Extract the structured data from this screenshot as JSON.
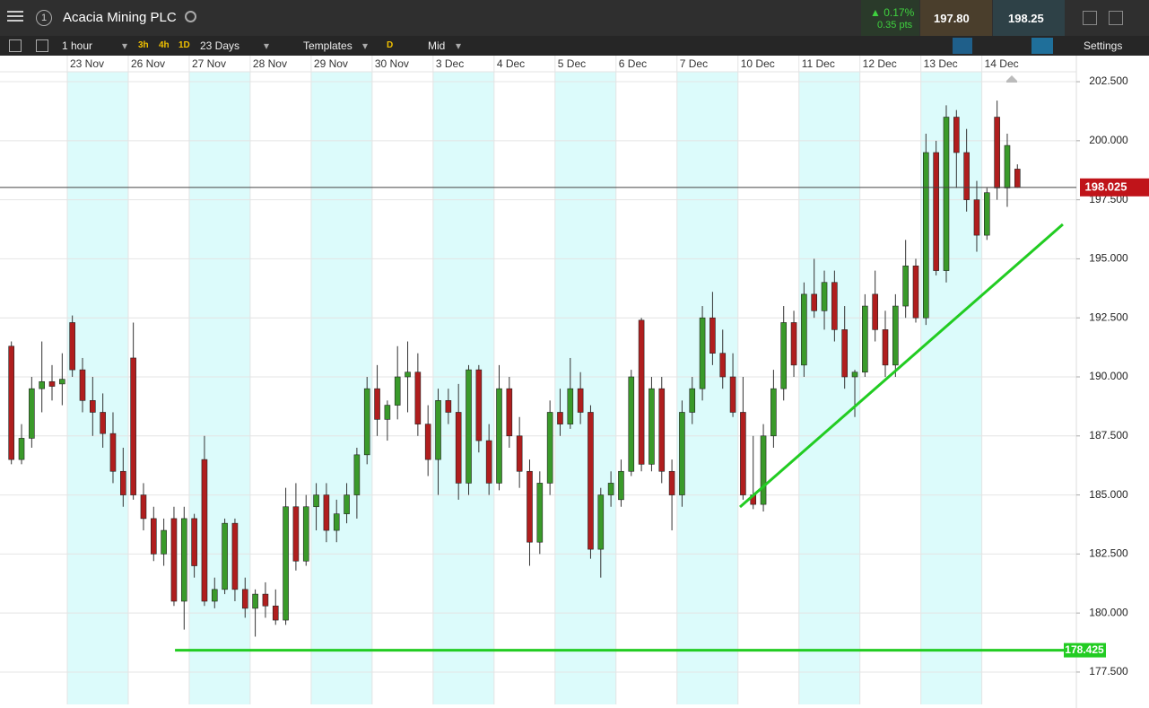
{
  "header": {
    "title": "Acacia Mining PLC",
    "change_pct": "▲ 0.17%",
    "change_pts": "0.35 pts",
    "sell": "197.80",
    "buy": "198.25"
  },
  "toolbar": {
    "interval": "1 hour",
    "quick": [
      "3h",
      "4h",
      "1D"
    ],
    "range": "23 Days",
    "templates": "Templates",
    "mode": "D",
    "price_type": "Mid",
    "settings": "Settings"
  },
  "chart_data": {
    "type": "candlestick",
    "up_color": "#3a9a2a",
    "down_color": "#b01e1e",
    "grid": true,
    "xlim": [
      -0.62,
      105.3
    ],
    "ylim": [
      176.13,
      202.92
    ],
    "xticks": [
      {
        "value": 6,
        "label": "23 Nov"
      },
      {
        "value": 12,
        "label": "26 Nov"
      },
      {
        "value": 18,
        "label": "27 Nov"
      },
      {
        "value": 24,
        "label": "28 Nov"
      },
      {
        "value": 30,
        "label": "29 Nov"
      },
      {
        "value": 36,
        "label": "30 Nov"
      },
      {
        "value": 42,
        "label": "3 Dec"
      },
      {
        "value": 48,
        "label": "4 Dec"
      },
      {
        "value": 54,
        "label": "5 Dec"
      },
      {
        "value": 60,
        "label": "6 Dec"
      },
      {
        "value": 66,
        "label": "7 Dec"
      },
      {
        "value": 72,
        "label": "10 Dec"
      },
      {
        "value": 78,
        "label": "11 Dec"
      },
      {
        "value": 84,
        "label": "12 Dec"
      },
      {
        "value": 90,
        "label": "13 Dec"
      },
      {
        "value": 96,
        "label": "14 Dec"
      }
    ],
    "yticks": [
      {
        "value": 177.5,
        "label": "177.500"
      },
      {
        "value": 180,
        "label": "180.000"
      },
      {
        "value": 182.5,
        "label": "182.500"
      },
      {
        "value": 185,
        "label": "185.000"
      },
      {
        "value": 187.5,
        "label": "187.500"
      },
      {
        "value": 190,
        "label": "190.000"
      },
      {
        "value": 192.5,
        "label": "192.500"
      },
      {
        "value": 195,
        "label": "195.000"
      },
      {
        "value": 197.5,
        "label": "197.500"
      },
      {
        "value": 200,
        "label": "200.000"
      },
      {
        "value": 202.5,
        "label": "202.500"
      }
    ],
    "current_price": {
      "value": 198.025,
      "label": "198.025",
      "color": "#c0141a"
    },
    "support": {
      "value": 178.425,
      "label": "178.425",
      "x": [
        16.6,
        105.3
      ],
      "color": "#22cc22"
    },
    "trendline": {
      "x": [
        72.2,
        103.97
      ],
      "y": [
        184.49,
        196.46
      ],
      "color": "#22cc22"
    },
    "candles": [
      {
        "open": 191.3,
        "high": 191.5,
        "low": 186.3,
        "close": 186.5
      },
      {
        "open": 186.5,
        "high": 188,
        "low": 186.3,
        "close": 187.4
      },
      {
        "open": 187.4,
        "high": 190,
        "low": 187,
        "close": 189.5
      },
      {
        "open": 189.5,
        "high": 191.5,
        "low": 188.5,
        "close": 189.8
      },
      {
        "open": 189.8,
        "high": 190.5,
        "low": 189,
        "close": 189.6
      },
      {
        "open": 189.7,
        "high": 191,
        "low": 188.8,
        "close": 189.9
      },
      {
        "open": 192.3,
        "high": 192.6,
        "low": 190,
        "close": 190.3
      },
      {
        "open": 190.3,
        "high": 190.8,
        "low": 188.5,
        "close": 189
      },
      {
        "open": 189,
        "high": 190,
        "low": 187.5,
        "close": 188.5
      },
      {
        "open": 188.5,
        "high": 189.3,
        "low": 187,
        "close": 187.6
      },
      {
        "open": 187.6,
        "high": 188.5,
        "low": 185.5,
        "close": 186
      },
      {
        "open": 186,
        "high": 187,
        "low": 184.5,
        "close": 185
      },
      {
        "open": 190.8,
        "high": 192.3,
        "low": 184.8,
        "close": 185
      },
      {
        "open": 185,
        "high": 185.5,
        "low": 183.5,
        "close": 184
      },
      {
        "open": 184,
        "high": 184.5,
        "low": 182.2,
        "close": 182.5
      },
      {
        "open": 182.5,
        "high": 184,
        "low": 182,
        "close": 183.5
      },
      {
        "open": 184,
        "high": 184.5,
        "low": 180.3,
        "close": 180.5
      },
      {
        "open": 180.5,
        "high": 184.5,
        "low": 179.3,
        "close": 184
      },
      {
        "open": 184,
        "high": 184.2,
        "low": 181.5,
        "close": 182
      },
      {
        "open": 186.5,
        "high": 187.5,
        "low": 180.3,
        "close": 180.5
      },
      {
        "open": 180.5,
        "high": 181.5,
        "low": 180.2,
        "close": 181
      },
      {
        "open": 181,
        "high": 184,
        "low": 180.8,
        "close": 183.8
      },
      {
        "open": 183.8,
        "high": 184,
        "low": 180.5,
        "close": 181
      },
      {
        "open": 181,
        "high": 181.5,
        "low": 179.8,
        "close": 180.2
      },
      {
        "open": 180.2,
        "high": 181,
        "low": 179,
        "close": 180.8
      },
      {
        "open": 180.8,
        "high": 181.3,
        "low": 179.8,
        "close": 180.3
      },
      {
        "open": 180.3,
        "high": 181,
        "low": 179.5,
        "close": 179.7
      },
      {
        "open": 179.7,
        "high": 185.3,
        "low": 179.5,
        "close": 184.5
      },
      {
        "open": 184.5,
        "high": 185.5,
        "low": 181.8,
        "close": 182.2
      },
      {
        "open": 182.2,
        "high": 185,
        "low": 182,
        "close": 184.5
      },
      {
        "open": 184.5,
        "high": 185.5,
        "low": 183.5,
        "close": 185
      },
      {
        "open": 185,
        "high": 185.5,
        "low": 183,
        "close": 183.5
      },
      {
        "open": 183.5,
        "high": 184.8,
        "low": 183,
        "close": 184.2
      },
      {
        "open": 184.2,
        "high": 185.5,
        "low": 183.8,
        "close": 185
      },
      {
        "open": 185,
        "high": 187,
        "low": 184,
        "close": 186.7
      },
      {
        "open": 186.7,
        "high": 190,
        "low": 186.3,
        "close": 189.5
      },
      {
        "open": 189.5,
        "high": 190.5,
        "low": 187.5,
        "close": 188.2
      },
      {
        "open": 188.2,
        "high": 189,
        "low": 187.3,
        "close": 188.8
      },
      {
        "open": 188.8,
        "high": 191.3,
        "low": 188.2,
        "close": 190
      },
      {
        "open": 190,
        "high": 191.5,
        "low": 188.5,
        "close": 190.2
      },
      {
        "open": 190.2,
        "high": 191,
        "low": 187.5,
        "close": 188
      },
      {
        "open": 188,
        "high": 188.8,
        "low": 185.8,
        "close": 186.5
      },
      {
        "open": 186.5,
        "high": 189.5,
        "low": 185,
        "close": 189
      },
      {
        "open": 189,
        "high": 189.5,
        "low": 188,
        "close": 188.5
      },
      {
        "open": 188.5,
        "high": 189.7,
        "low": 184.8,
        "close": 185.5
      },
      {
        "open": 185.5,
        "high": 190.5,
        "low": 185,
        "close": 190.3
      },
      {
        "open": 190.3,
        "high": 190.5,
        "low": 186.8,
        "close": 187.3
      },
      {
        "open": 187.3,
        "high": 188,
        "low": 185,
        "close": 185.5
      },
      {
        "open": 185.5,
        "high": 190.5,
        "low": 185.2,
        "close": 189.5
      },
      {
        "open": 189.5,
        "high": 190,
        "low": 187,
        "close": 187.5
      },
      {
        "open": 187.5,
        "high": 188.3,
        "low": 185.3,
        "close": 186
      },
      {
        "open": 186,
        "high": 186.5,
        "low": 182,
        "close": 183
      },
      {
        "open": 183,
        "high": 186,
        "low": 182.5,
        "close": 185.5
      },
      {
        "open": 185.5,
        "high": 189,
        "low": 185,
        "close": 188.5
      },
      {
        "open": 188.5,
        "high": 189.5,
        "low": 187.5,
        "close": 188
      },
      {
        "open": 188,
        "high": 190.8,
        "low": 187.8,
        "close": 189.5
      },
      {
        "open": 189.5,
        "high": 190.2,
        "low": 188,
        "close": 188.5
      },
      {
        "open": 188.5,
        "high": 188.8,
        "low": 182.3,
        "close": 182.7
      },
      {
        "open": 182.7,
        "high": 185.3,
        "low": 181.5,
        "close": 185
      },
      {
        "open": 185,
        "high": 186,
        "low": 184.5,
        "close": 185.5
      },
      {
        "open": 184.8,
        "high": 186.5,
        "low": 184.5,
        "close": 186
      },
      {
        "open": 186,
        "high": 190.3,
        "low": 185.8,
        "close": 190
      },
      {
        "open": 192.4,
        "high": 192.5,
        "low": 186,
        "close": 186.3
      },
      {
        "open": 186.3,
        "high": 190,
        "low": 186,
        "close": 189.5
      },
      {
        "open": 189.5,
        "high": 190,
        "low": 185.5,
        "close": 186
      },
      {
        "open": 186,
        "high": 186.5,
        "low": 183.5,
        "close": 185
      },
      {
        "open": 185,
        "high": 189,
        "low": 184.5,
        "close": 188.5
      },
      {
        "open": 188.5,
        "high": 190,
        "low": 188,
        "close": 189.5
      },
      {
        "open": 189.5,
        "high": 193,
        "low": 189,
        "close": 192.5
      },
      {
        "open": 192.5,
        "high": 193.6,
        "low": 190.5,
        "close": 191
      },
      {
        "open": 191,
        "high": 192,
        "low": 189.5,
        "close": 190
      },
      {
        "open": 190,
        "high": 191,
        "low": 188.3,
        "close": 188.5
      },
      {
        "open": 188.5,
        "high": 190,
        "low": 184.8,
        "close": 185
      },
      {
        "open": 185,
        "high": 187.5,
        "low": 184.4,
        "close": 184.6
      },
      {
        "open": 184.6,
        "high": 188,
        "low": 184.3,
        "close": 187.5
      },
      {
        "open": 187.5,
        "high": 190.3,
        "low": 187,
        "close": 189.5
      },
      {
        "open": 189.5,
        "high": 193,
        "low": 189,
        "close": 192.3
      },
      {
        "open": 192.3,
        "high": 192.8,
        "low": 190,
        "close": 190.5
      },
      {
        "open": 190.5,
        "high": 194,
        "low": 190,
        "close": 193.5
      },
      {
        "open": 193.5,
        "high": 195,
        "low": 192.5,
        "close": 192.8
      },
      {
        "open": 192.8,
        "high": 194.5,
        "low": 192,
        "close": 194
      },
      {
        "open": 194,
        "high": 194.5,
        "low": 191.5,
        "close": 192
      },
      {
        "open": 192,
        "high": 193,
        "low": 189.5,
        "close": 190
      },
      {
        "open": 190,
        "high": 190.3,
        "low": 188.3,
        "close": 190.2
      },
      {
        "open": 190.2,
        "high": 193.5,
        "low": 190,
        "close": 193
      },
      {
        "open": 193.5,
        "high": 194.5,
        "low": 191.5,
        "close": 192
      },
      {
        "open": 192,
        "high": 192.8,
        "low": 190,
        "close": 190.5
      },
      {
        "open": 190.5,
        "high": 193.5,
        "low": 190,
        "close": 193
      },
      {
        "open": 193,
        "high": 195.8,
        "low": 192.5,
        "close": 194.7
      },
      {
        "open": 194.7,
        "high": 195,
        "low": 192.3,
        "close": 192.5
      },
      {
        "open": 192.5,
        "high": 200.3,
        "low": 192.2,
        "close": 199.5
      },
      {
        "open": 199.5,
        "high": 200,
        "low": 194.3,
        "close": 194.5
      },
      {
        "open": 194.5,
        "high": 201.5,
        "low": 194,
        "close": 201
      },
      {
        "open": 201,
        "high": 201.3,
        "low": 198,
        "close": 199.5
      },
      {
        "open": 199.5,
        "high": 200.5,
        "low": 197,
        "close": 197.5
      },
      {
        "open": 197.5,
        "high": 198.3,
        "low": 195.3,
        "close": 196
      },
      {
        "open": 196,
        "high": 198,
        "low": 195.8,
        "close": 197.8
      },
      {
        "open": 201,
        "high": 201.7,
        "low": 197.5,
        "close": 198
      },
      {
        "open": 198,
        "high": 200.3,
        "low": 197.2,
        "close": 199.8
      },
      {
        "open": 198.8,
        "high": 199,
        "low": 198,
        "close": 198.025
      }
    ]
  }
}
